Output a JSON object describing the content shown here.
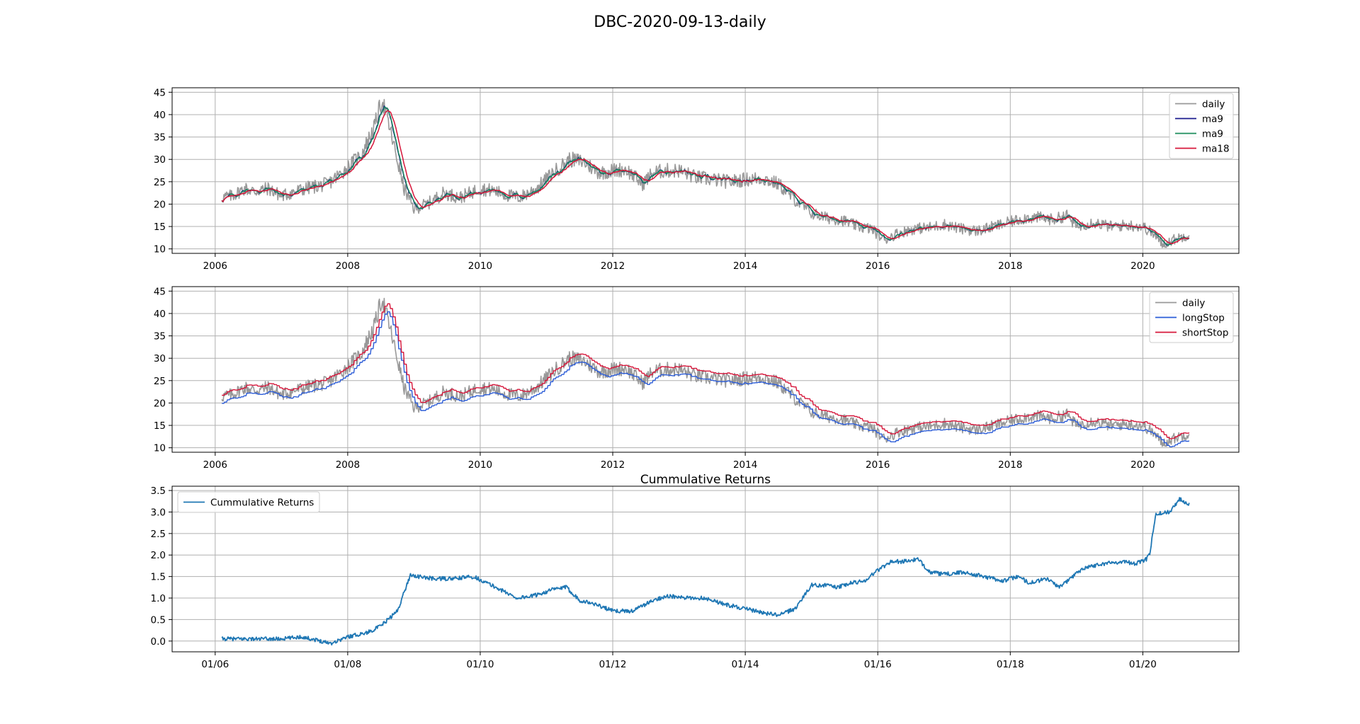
{
  "figure_title": "DBC-2020-09-13-daily",
  "colors": {
    "daily": "#999999",
    "ma9a": "#1a1a8c",
    "ma9b": "#1a8c5a",
    "ma18": "#d6163a",
    "longStop": "#2a5bd7",
    "shortStop": "#d6163a",
    "returns": "#1f77b4"
  },
  "chart_data": [
    {
      "type": "line",
      "title": "",
      "xlim": [
        2005.35,
        2021.45
      ],
      "ylim": [
        9.0,
        46.0
      ],
      "xticks": [
        2006,
        2008,
        2010,
        2012,
        2014,
        2016,
        2018,
        2020
      ],
      "xtick_labels": [
        "2006",
        "2008",
        "2010",
        "2012",
        "2014",
        "2016",
        "2018",
        "2020"
      ],
      "yticks": [
        10,
        15,
        20,
        25,
        30,
        35,
        40,
        45
      ],
      "ytick_labels": [
        "10",
        "15",
        "20",
        "25",
        "30",
        "35",
        "40",
        "45"
      ],
      "grid": true,
      "legend_position": "top-right",
      "legend": [
        "daily",
        "ma9",
        "ma9",
        "ma18"
      ],
      "price_x": [
        2006.1,
        2006.25,
        2006.45,
        2006.6,
        2006.8,
        2007.0,
        2007.2,
        2007.45,
        2007.7,
        2007.95,
        2008.2,
        2008.4,
        2008.52,
        2008.65,
        2008.85,
        2009.0,
        2009.2,
        2009.45,
        2009.7,
        2010.0,
        2010.2,
        2010.4,
        2010.6,
        2010.85,
        2011.1,
        2011.35,
        2011.55,
        2011.8,
        2012.0,
        2012.2,
        2012.45,
        2012.6,
        2012.8,
        2013.0,
        2013.25,
        2013.5,
        2013.75,
        2014.0,
        2014.25,
        2014.5,
        2014.75,
        2015.0,
        2015.2,
        2015.45,
        2015.7,
        2015.9,
        2016.1,
        2016.3,
        2016.55,
        2016.8,
        2017.0,
        2017.25,
        2017.5,
        2017.75,
        2018.0,
        2018.25,
        2018.45,
        2018.65,
        2018.85,
        2019.0,
        2019.25,
        2019.5,
        2019.75,
        2020.0,
        2020.15,
        2020.3,
        2020.45,
        2020.65,
        2020.7
      ],
      "price_y": [
        21.5,
        21.8,
        23.5,
        22.8,
        23.5,
        21.8,
        22.8,
        23.8,
        24.5,
        27.5,
        31.0,
        37.0,
        43.5,
        36.0,
        23.5,
        19.0,
        20.0,
        22.5,
        21.5,
        23.5,
        23.0,
        22.0,
        21.5,
        23.5,
        27.0,
        30.0,
        29.5,
        27.0,
        27.5,
        27.8,
        24.5,
        27.0,
        27.5,
        27.5,
        26.0,
        25.5,
        25.0,
        25.5,
        25.8,
        24.5,
        21.0,
        18.0,
        17.0,
        16.5,
        15.0,
        14.5,
        12.0,
        13.5,
        14.5,
        14.8,
        15.5,
        14.5,
        14.0,
        15.0,
        16.0,
        17.0,
        17.0,
        16.5,
        17.5,
        15.0,
        16.0,
        15.0,
        15.3,
        15.0,
        13.5,
        11.0,
        12.0,
        13.0,
        13.2
      ],
      "series": [
        {
          "name": "daily"
        },
        {
          "name": "ma9"
        },
        {
          "name": "ma9"
        },
        {
          "name": "ma18"
        }
      ]
    },
    {
      "type": "line",
      "title": "",
      "xlim": [
        2005.35,
        2021.45
      ],
      "ylim": [
        9.0,
        46.0
      ],
      "xticks": [
        2006,
        2008,
        2010,
        2012,
        2014,
        2016,
        2018,
        2020
      ],
      "xtick_labels": [
        "2006",
        "2008",
        "2010",
        "2012",
        "2014",
        "2016",
        "2018",
        "2020"
      ],
      "yticks": [
        10,
        15,
        20,
        25,
        30,
        35,
        40,
        45
      ],
      "ytick_labels": [
        "10",
        "15",
        "20",
        "25",
        "30",
        "35",
        "40",
        "45"
      ],
      "grid": true,
      "legend_position": "top-right",
      "legend": [
        "daily",
        "longStop",
        "shortStop"
      ],
      "series": [
        {
          "name": "daily"
        },
        {
          "name": "longStop"
        },
        {
          "name": "shortStop"
        }
      ]
    },
    {
      "type": "line",
      "title": "Cummulative Returns",
      "xlim": [
        2005.35,
        2021.45
      ],
      "ylim": [
        -0.25,
        3.6
      ],
      "xticks": [
        2006,
        2008,
        2010,
        2012,
        2014,
        2016,
        2018,
        2020
      ],
      "xtick_labels": [
        "01/06",
        "01/08",
        "01/10",
        "01/12",
        "01/14",
        "01/16",
        "01/18",
        "01/20"
      ],
      "yticks": [
        0.0,
        0.5,
        1.0,
        1.5,
        2.0,
        2.5,
        3.0,
        3.5
      ],
      "ytick_labels": [
        "0.0",
        "0.5",
        "1.0",
        "1.5",
        "2.0",
        "2.5",
        "3.0",
        "3.5"
      ],
      "grid": true,
      "legend_position": "top-left",
      "legend": [
        "Cummulative Returns"
      ],
      "series": [
        {
          "name": "Cummulative Returns",
          "x": [
            2006.1,
            2006.4,
            2006.7,
            2007.0,
            2007.3,
            2007.6,
            2007.75,
            2008.0,
            2008.3,
            2008.5,
            2008.75,
            2008.95,
            2009.05,
            2009.3,
            2009.6,
            2009.9,
            2010.1,
            2010.3,
            2010.55,
            2010.8,
            2011.1,
            2011.3,
            2011.5,
            2011.75,
            2012.0,
            2012.3,
            2012.55,
            2012.8,
            2013.1,
            2013.4,
            2013.7,
            2014.0,
            2014.3,
            2014.5,
            2014.75,
            2015.0,
            2015.2,
            2015.4,
            2015.6,
            2015.8,
            2016.0,
            2016.2,
            2016.4,
            2016.6,
            2016.8,
            2017.0,
            2017.3,
            2017.6,
            2017.9,
            2018.1,
            2018.3,
            2018.55,
            2018.75,
            2018.9,
            2019.1,
            2019.4,
            2019.7,
            2019.9,
            2020.05,
            2020.1,
            2020.2,
            2020.4,
            2020.55,
            2020.7
          ],
          "y": [
            0.05,
            0.05,
            0.05,
            0.05,
            0.1,
            0.0,
            -0.05,
            0.1,
            0.2,
            0.35,
            0.7,
            1.55,
            1.5,
            1.45,
            1.45,
            1.5,
            1.35,
            1.2,
            1.0,
            1.05,
            1.2,
            1.25,
            0.95,
            0.85,
            0.7,
            0.7,
            0.9,
            1.05,
            1.0,
            1.0,
            0.85,
            0.75,
            0.65,
            0.6,
            0.75,
            1.3,
            1.3,
            1.25,
            1.35,
            1.4,
            1.65,
            1.85,
            1.85,
            1.9,
            1.6,
            1.55,
            1.6,
            1.5,
            1.4,
            1.5,
            1.35,
            1.45,
            1.25,
            1.45,
            1.7,
            1.8,
            1.85,
            1.8,
            1.9,
            2.0,
            2.95,
            3.0,
            3.3,
            3.2
          ]
        }
      ]
    }
  ]
}
